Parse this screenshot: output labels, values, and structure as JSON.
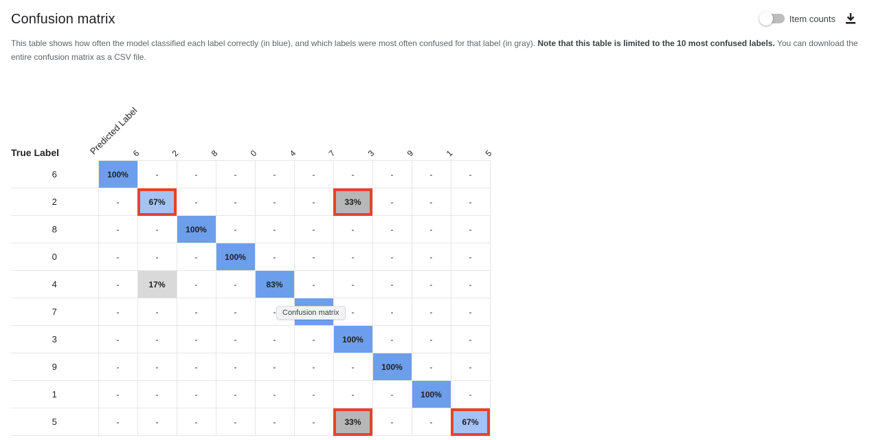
{
  "header": {
    "title": "Confusion matrix",
    "description_main": "This table shows how often the model classified each label correctly (in blue), and which labels were most often confused for that label (in gray). ",
    "description_bold": "Note that this table is limited to the 10 most confused labels.",
    "description_tail": " You can download the entire confusion matrix as a CSV file."
  },
  "toolbar": {
    "item_counts_label": "Item counts",
    "item_counts_enabled": false,
    "download_icon": "download-icon"
  },
  "matrix": {
    "true_label_title": "True Label",
    "predicted_label_title": "Predicted Label",
    "columns": [
      "6",
      "2",
      "8",
      "0",
      "4",
      "7",
      "3",
      "9",
      "1",
      "5"
    ],
    "rows": [
      {
        "label": "6",
        "cells": [
          "100%",
          "-",
          "-",
          "-",
          "-",
          "-",
          "-",
          "-",
          "-",
          "-"
        ]
      },
      {
        "label": "2",
        "cells": [
          "-",
          "67%",
          "-",
          "-",
          "-",
          "-",
          "33%",
          "-",
          "-",
          "-"
        ]
      },
      {
        "label": "8",
        "cells": [
          "-",
          "-",
          "100%",
          "-",
          "-",
          "-",
          "-",
          "-",
          "-",
          "-"
        ]
      },
      {
        "label": "0",
        "cells": [
          "-",
          "-",
          "-",
          "100%",
          "-",
          "-",
          "-",
          "-",
          "-",
          "-"
        ]
      },
      {
        "label": "4",
        "cells": [
          "-",
          "17%",
          "-",
          "-",
          "83%",
          "-",
          "-",
          "-",
          "-",
          "-"
        ]
      },
      {
        "label": "7",
        "cells": [
          "-",
          "-",
          "-",
          "-",
          "-",
          "",
          "-",
          "-",
          "-",
          "-"
        ]
      },
      {
        "label": "3",
        "cells": [
          "-",
          "-",
          "-",
          "-",
          "-",
          "-",
          "100%",
          "-",
          "-",
          "-"
        ]
      },
      {
        "label": "9",
        "cells": [
          "-",
          "-",
          "-",
          "-",
          "-",
          "-",
          "-",
          "100%",
          "-",
          "-"
        ]
      },
      {
        "label": "1",
        "cells": [
          "-",
          "-",
          "-",
          "-",
          "-",
          "-",
          "-",
          "-",
          "100%",
          "-"
        ]
      },
      {
        "label": "5",
        "cells": [
          "-",
          "-",
          "-",
          "-",
          "-",
          "-",
          "33%",
          "-",
          "-",
          "67%"
        ]
      }
    ],
    "highlighted_cells": [
      "1-1",
      "1-6",
      "9-6",
      "9-9"
    ]
  },
  "tooltip": {
    "text": "Confusion matrix"
  },
  "colors": {
    "correct_full": "#6d9eeb",
    "correct_partial": "#a4c2f4",
    "confused_light": "#d9d9d9",
    "confused_dark": "#b7b7b7",
    "highlight_border": "#e8412c"
  }
}
